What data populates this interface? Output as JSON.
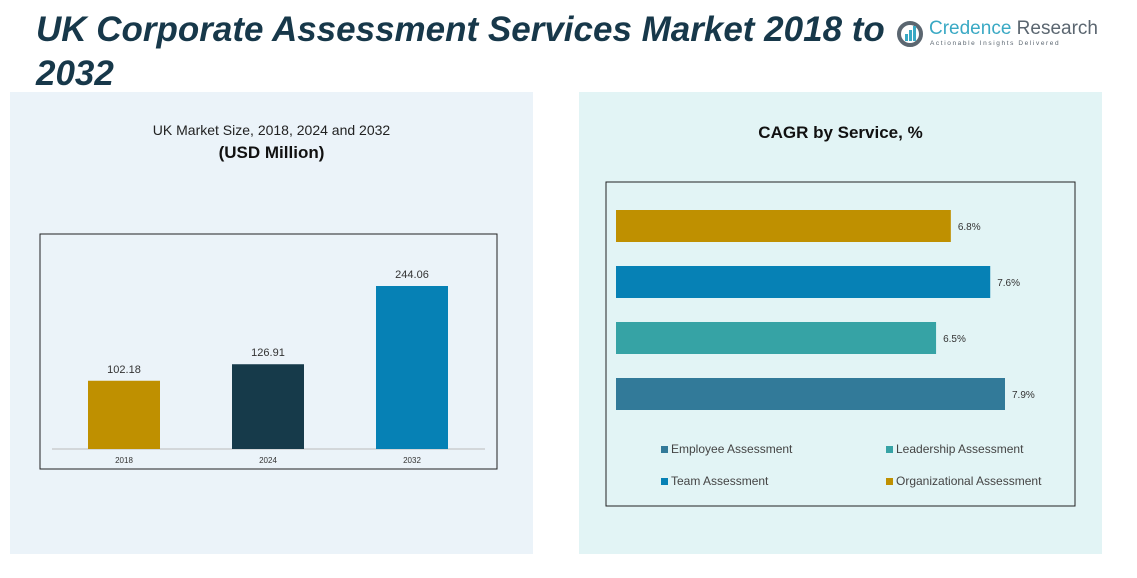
{
  "title": "UK Corporate Assessment Services Market 2018 to 2032",
  "logo": {
    "name_a": "Credence",
    "name_b": " Research",
    "tagline": "Actionable Insights Delivered"
  },
  "chart_data": [
    {
      "type": "bar",
      "title": "UK Market Size, 2018, 2024 and 2032",
      "subtitle": "(USD Million)",
      "categories": [
        "2018",
        "2024",
        "2032"
      ],
      "values": [
        102.18,
        126.91,
        244.06
      ],
      "labels": [
        "102.18",
        "126.91",
        "244.06"
      ],
      "colors": [
        "#bf9000",
        "#163a4a",
        "#0681b5"
      ],
      "ylim": [
        0,
        260
      ]
    },
    {
      "type": "bar",
      "orientation": "horizontal",
      "title": "CAGR by Service, %",
      "categories": [
        "Organizational Assessment",
        "Team Assessment",
        "Leadership Assessment",
        "Employee Assessment"
      ],
      "values": [
        6.8,
        7.6,
        6.5,
        7.9
      ],
      "labels": [
        "6.8%",
        "7.6%",
        "6.5%",
        "7.9%"
      ],
      "colors": [
        "#bf9000",
        "#0681b5",
        "#36a3a5",
        "#327a99"
      ],
      "legend": [
        {
          "label": "Employee Assessment",
          "color": "#327a99"
        },
        {
          "label": "Leadership Assessment",
          "color": "#36a3a5"
        },
        {
          "label": "Team Assessment",
          "color": "#0681b5"
        },
        {
          "label": "Organizational Assessment",
          "color": "#bf9000"
        }
      ],
      "legend_position": "bottom",
      "xlim": [
        0,
        8
      ]
    }
  ]
}
